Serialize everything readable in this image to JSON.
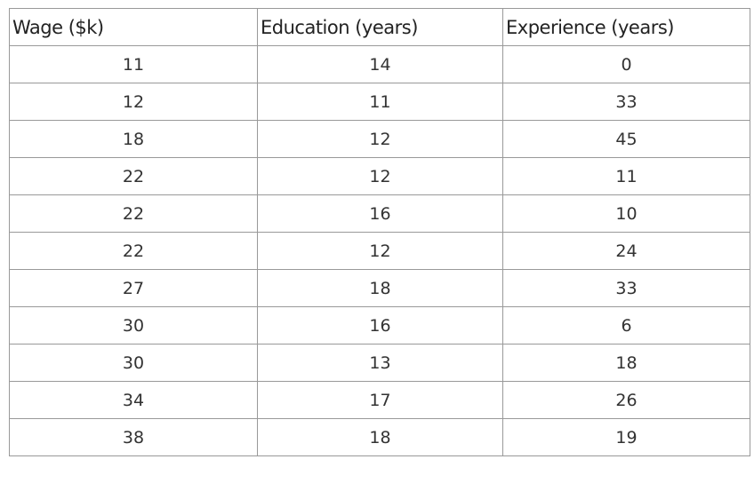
{
  "table": {
    "header": [
      "Wage ($k)",
      "Education (years)",
      "Experience (years)"
    ],
    "rows": [
      [
        11,
        14,
        0
      ],
      [
        12,
        11,
        33
      ],
      [
        18,
        12,
        45
      ],
      [
        22,
        12,
        11
      ],
      [
        22,
        16,
        10
      ],
      [
        22,
        12,
        24
      ],
      [
        27,
        18,
        33
      ],
      [
        30,
        16,
        6
      ],
      [
        30,
        13,
        18
      ],
      [
        34,
        17,
        26
      ],
      [
        38,
        18,
        19
      ]
    ]
  }
}
